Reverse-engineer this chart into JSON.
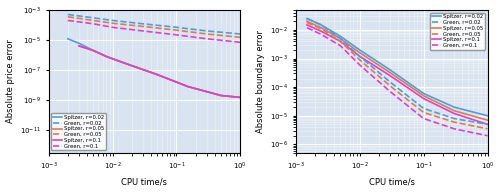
{
  "background_color": "#d9e4f0",
  "fig_bg": "#ffffff",
  "left_ylabel": "Absolute price error",
  "right_ylabel": "Absolute boundary error",
  "xlabel": "CPU time/s",
  "xlim": [
    0.001,
    1.0
  ],
  "left_ylim": [
    3e-13,
    0.001
  ],
  "right_ylim": [
    5e-07,
    0.05
  ],
  "colors": {
    "r002": "#4d9de0",
    "r005": "#e07b4d",
    "r01": "#e040c8"
  },
  "legend_entries": [
    {
      "label": "Spitzer, r=0.02",
      "color": "#4d9de0",
      "ls": "solid"
    },
    {
      "label": "Green, r=0.02",
      "color": "#4d9de0",
      "ls": "dashed"
    },
    {
      "label": "Spitzer, r=0.05",
      "color": "#e07b4d",
      "ls": "solid"
    },
    {
      "label": "Green, r=0.05",
      "color": "#e07b4d",
      "ls": "dashed"
    },
    {
      "label": "Spitzer, r=0.1",
      "color": "#e040c8",
      "ls": "solid"
    },
    {
      "label": "Green, r=0.1",
      "color": "#e040c8",
      "ls": "dashed"
    }
  ],
  "left_spitzer_r002_x": [
    0.002,
    0.003,
    0.005,
    0.008,
    0.015,
    0.05,
    0.15,
    0.5,
    1.0
  ],
  "left_spitzer_r002_y": [
    1.2e-05,
    6e-06,
    2e-06,
    8e-07,
    3e-07,
    5e-08,
    8e-09,
    2e-09,
    1.5e-09
  ],
  "left_spitzer_r005_x": [
    0.003,
    0.005,
    0.008,
    0.015,
    0.05,
    0.15,
    0.5,
    1.0
  ],
  "left_spitzer_r005_y": [
    4e-06,
    2e-06,
    8e-07,
    3e-07,
    5e-08,
    8e-09,
    2e-09,
    1.5e-09
  ],
  "left_spitzer_r01_x": [
    0.003,
    0.005,
    0.008,
    0.015,
    0.05,
    0.15,
    0.5,
    1.0
  ],
  "left_spitzer_r01_y": [
    4e-06,
    2e-06,
    8e-07,
    3e-07,
    5e-08,
    8e-09,
    2e-09,
    1.5e-09
  ],
  "left_green_r002_x": [
    0.002,
    0.005,
    0.01,
    0.03,
    0.1,
    0.3,
    1.0
  ],
  "left_green_r002_y": [
    0.0005,
    0.0003,
    0.0002,
    0.00012,
    7e-05,
    4e-05,
    2.5e-05
  ],
  "left_green_r005_x": [
    0.002,
    0.005,
    0.01,
    0.03,
    0.1,
    0.3,
    1.0
  ],
  "left_green_r005_y": [
    0.00035,
    0.0002,
    0.00013,
    8e-05,
    4.5e-05,
    2.5e-05,
    1.5e-05
  ],
  "left_green_r01_x": [
    0.002,
    0.005,
    0.01,
    0.03,
    0.1,
    0.3,
    1.0
  ],
  "left_green_r01_y": [
    0.0002,
    0.00012,
    7e-05,
    4e-05,
    2.2e-05,
    1.2e-05,
    7e-06
  ],
  "right_spitzer_r002_x": [
    0.0015,
    0.0025,
    0.005,
    0.01,
    0.03,
    0.1,
    0.3,
    1.0
  ],
  "right_spitzer_r002_y": [
    0.025,
    0.015,
    0.006,
    0.002,
    0.0004,
    6e-05,
    2e-05,
    1e-05
  ],
  "right_spitzer_r005_x": [
    0.0015,
    0.0025,
    0.005,
    0.01,
    0.03,
    0.1,
    0.3,
    1.0
  ],
  "right_spitzer_r005_y": [
    0.02,
    0.012,
    0.005,
    0.0016,
    0.00032,
    5e-05,
    1.5e-05,
    7e-06
  ],
  "right_spitzer_r01_x": [
    0.0015,
    0.0025,
    0.005,
    0.01,
    0.03,
    0.1,
    0.3,
    1.0
  ],
  "right_spitzer_r01_y": [
    0.015,
    0.009,
    0.004,
    0.0012,
    0.00025,
    4e-05,
    1.2e-05,
    5e-06
  ],
  "right_green_r002_x": [
    0.0015,
    0.0025,
    0.005,
    0.01,
    0.03,
    0.1,
    0.3,
    1.0
  ],
  "right_green_r002_y": [
    0.025,
    0.015,
    0.005,
    0.0012,
    0.00015,
    1.8e-05,
    8e-06,
    5e-06
  ],
  "right_green_r005_x": [
    0.0015,
    0.0025,
    0.005,
    0.01,
    0.03,
    0.1,
    0.3,
    1.0
  ],
  "right_green_r005_y": [
    0.018,
    0.011,
    0.004,
    0.0009,
    0.00011,
    1.3e-05,
    6e-06,
    3.5e-06
  ],
  "right_green_r01_x": [
    0.0015,
    0.0025,
    0.005,
    0.01,
    0.03,
    0.1,
    0.3,
    1.0
  ],
  "right_green_r01_y": [
    0.012,
    0.007,
    0.0028,
    0.0006,
    7e-05,
    8e-06,
    3.5e-06,
    2e-06
  ]
}
